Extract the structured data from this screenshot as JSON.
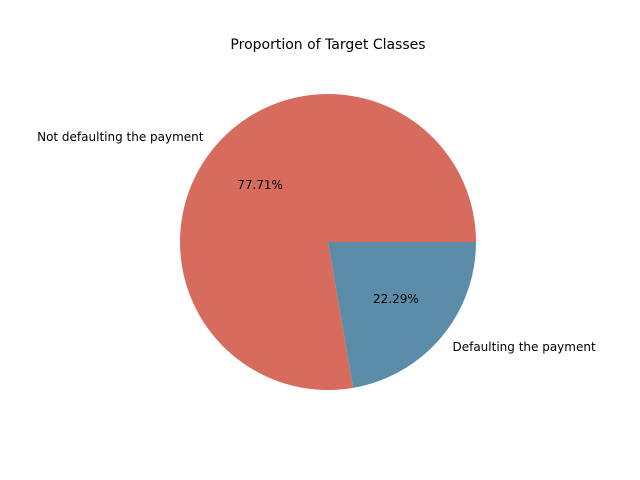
{
  "chart_data": {
    "type": "pie",
    "title": "Proportion of Target Classes",
    "slices": [
      {
        "label": "Not defaulting the payment",
        "value": 77.71,
        "pct_label": "77.71%",
        "color": "#d66b5e"
      },
      {
        "label": "Defaulting the payment",
        "value": 22.29,
        "pct_label": "22.29%",
        "color": "#5b8da9"
      }
    ],
    "start_angle_deg": 0,
    "direction": "counterclockwise",
    "legend": "none"
  }
}
